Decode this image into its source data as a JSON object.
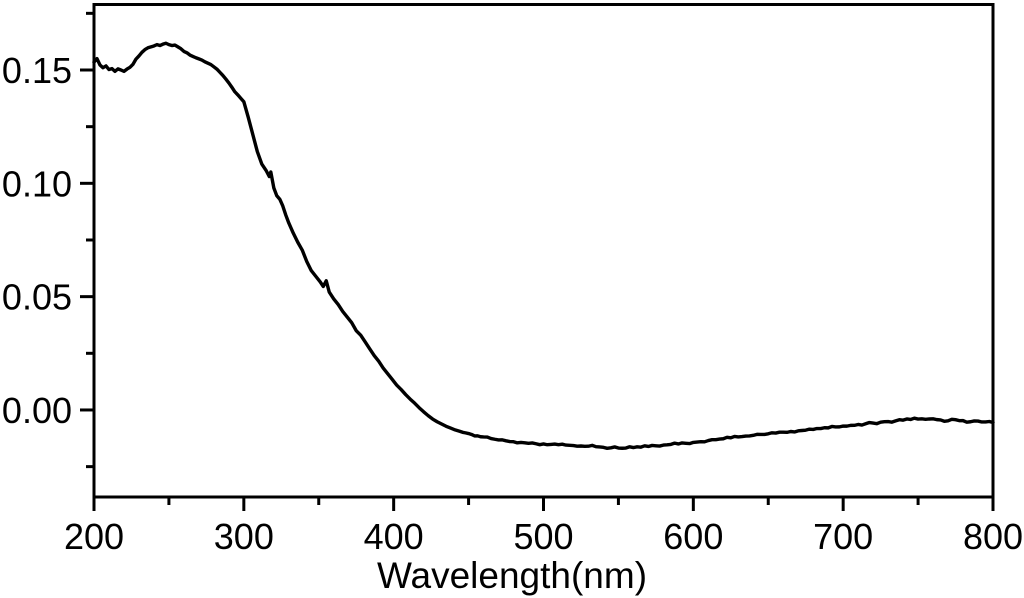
{
  "figure": {
    "background_color": "#ffffff",
    "axis_color": "#000000"
  },
  "chart_data": {
    "type": "line",
    "title": "",
    "xlabel": "Wavelength(nm)",
    "ylabel": "",
    "xlim": [
      200,
      800
    ],
    "ylim": [
      -0.0384,
      0.1789
    ],
    "x_major_ticks": [
      200,
      300,
      400,
      500,
      600,
      700,
      800
    ],
    "x_major_tick_labels": [
      "200",
      "300",
      "400",
      "500",
      "600",
      "700",
      "800"
    ],
    "x_minor_ticks": [
      250,
      350,
      450,
      550,
      650,
      750
    ],
    "y_major_ticks": [
      0.0,
      0.05,
      0.1,
      0.15
    ],
    "y_major_tick_labels": [
      "0.00",
      "0.05",
      "0.10",
      "0.15"
    ],
    "y_minor_ticks": [
      -0.025,
      0.025,
      0.075,
      0.125,
      0.175
    ],
    "grid": false,
    "legend_position": "none",
    "line_color": "#000000",
    "series": [
      {
        "name": "spectrum",
        "points": [
          [
            200,
            0.1535
          ],
          [
            202,
            0.155
          ],
          [
            204,
            0.1522
          ],
          [
            206,
            0.151
          ],
          [
            208,
            0.1518
          ],
          [
            210,
            0.1502
          ],
          [
            212,
            0.1506
          ],
          [
            214,
            0.1494
          ],
          [
            216,
            0.1505
          ],
          [
            218,
            0.15
          ],
          [
            220,
            0.1494
          ],
          [
            222,
            0.1504
          ],
          [
            224,
            0.1512
          ],
          [
            226,
            0.1525
          ],
          [
            228,
            0.1548
          ],
          [
            230,
            0.1562
          ],
          [
            232,
            0.1578
          ],
          [
            234,
            0.159
          ],
          [
            236,
            0.1598
          ],
          [
            238,
            0.1602
          ],
          [
            240,
            0.1606
          ],
          [
            242,
            0.1612
          ],
          [
            244,
            0.1608
          ],
          [
            246,
            0.1614
          ],
          [
            248,
            0.1618
          ],
          [
            250,
            0.1612
          ],
          [
            252,
            0.1608
          ],
          [
            254,
            0.161
          ],
          [
            256,
            0.1602
          ],
          [
            258,
            0.1594
          ],
          [
            260,
            0.1582
          ],
          [
            262,
            0.1576
          ],
          [
            264,
            0.1566
          ],
          [
            266,
            0.156
          ],
          [
            268,
            0.1554
          ],
          [
            270,
            0.1549
          ],
          [
            272,
            0.1544
          ],
          [
            274,
            0.1536
          ],
          [
            276,
            0.153
          ],
          [
            278,
            0.1524
          ],
          [
            280,
            0.1514
          ],
          [
            282,
            0.1504
          ],
          [
            284,
            0.149
          ],
          [
            286,
            0.1476
          ],
          [
            288,
            0.146
          ],
          [
            290,
            0.1443
          ],
          [
            292,
            0.1424
          ],
          [
            294,
            0.1404
          ],
          [
            296,
            0.139
          ],
          [
            298,
            0.1375
          ],
          [
            300,
            0.136
          ],
          [
            303,
            0.129
          ],
          [
            306,
            0.1215
          ],
          [
            309,
            0.114
          ],
          [
            312,
            0.1085
          ],
          [
            315,
            0.1055
          ],
          [
            317,
            0.103
          ],
          [
            318,
            0.105
          ],
          [
            320,
            0.098
          ],
          [
            322,
            0.0945
          ],
          [
            324,
            0.093
          ],
          [
            326,
            0.09
          ],
          [
            328,
            0.086
          ],
          [
            330,
            0.0825
          ],
          [
            333,
            0.078
          ],
          [
            336,
            0.074
          ],
          [
            339,
            0.0705
          ],
          [
            342,
            0.0655
          ],
          [
            345,
            0.0615
          ],
          [
            348,
            0.059
          ],
          [
            351,
            0.0565
          ],
          [
            353,
            0.0545
          ],
          [
            355,
            0.057
          ],
          [
            357,
            0.052
          ],
          [
            360,
            0.049
          ],
          [
            363,
            0.0465
          ],
          [
            366,
            0.0435
          ],
          [
            369,
            0.041
          ],
          [
            372,
            0.0385
          ],
          [
            375,
            0.035
          ],
          [
            378,
            0.033
          ],
          [
            381,
            0.03
          ],
          [
            384,
            0.027
          ],
          [
            387,
            0.024
          ],
          [
            390,
            0.0215
          ],
          [
            393,
            0.0185
          ],
          [
            396,
            0.016
          ],
          [
            399,
            0.0135
          ],
          [
            402,
            0.011
          ],
          [
            405,
            0.009
          ],
          [
            408,
            0.0068
          ],
          [
            411,
            0.0048
          ],
          [
            414,
            0.003
          ],
          [
            417,
            0.001
          ],
          [
            420,
            -0.0008
          ],
          [
            423,
            -0.0025
          ],
          [
            426,
            -0.004
          ],
          [
            429,
            -0.0052
          ],
          [
            432,
            -0.0062
          ],
          [
            435,
            -0.0072
          ],
          [
            438,
            -0.008
          ],
          [
            441,
            -0.0088
          ],
          [
            444,
            -0.0094
          ],
          [
            448,
            -0.0101
          ],
          [
            452,
            -0.0108
          ],
          [
            456,
            -0.0114
          ],
          [
            460,
            -0.0119
          ],
          [
            465,
            -0.0126
          ],
          [
            470,
            -0.0132
          ],
          [
            475,
            -0.0136
          ],
          [
            480,
            -0.014
          ],
          [
            485,
            -0.0143
          ],
          [
            490,
            -0.0147
          ],
          [
            495,
            -0.0149
          ],
          [
            500,
            -0.015
          ],
          [
            505,
            -0.0152
          ],
          [
            510,
            -0.0153
          ],
          [
            515,
            -0.0155
          ],
          [
            520,
            -0.0157
          ],
          [
            525,
            -0.0159
          ],
          [
            530,
            -0.016
          ],
          [
            535,
            -0.0162
          ],
          [
            540,
            -0.0165
          ],
          [
            545,
            -0.0167
          ],
          [
            550,
            -0.0168
          ],
          [
            555,
            -0.0168
          ],
          [
            560,
            -0.0166
          ],
          [
            565,
            -0.0164
          ],
          [
            570,
            -0.0161
          ],
          [
            575,
            -0.0158
          ],
          [
            580,
            -0.0155
          ],
          [
            585,
            -0.0152
          ],
          [
            590,
            -0.015
          ],
          [
            595,
            -0.0147
          ],
          [
            600,
            -0.0143
          ],
          [
            605,
            -0.014
          ],
          [
            610,
            -0.0135
          ],
          [
            615,
            -0.0131
          ],
          [
            620,
            -0.0127
          ],
          [
            625,
            -0.0123
          ],
          [
            630,
            -0.0119
          ],
          [
            635,
            -0.0115
          ],
          [
            640,
            -0.0112
          ],
          [
            645,
            -0.0108
          ],
          [
            650,
            -0.0105
          ],
          [
            655,
            -0.0102
          ],
          [
            660,
            -0.0098
          ],
          [
            665,
            -0.0095
          ],
          [
            670,
            -0.0092
          ],
          [
            675,
            -0.0089
          ],
          [
            680,
            -0.0086
          ],
          [
            685,
            -0.0082
          ],
          [
            690,
            -0.0079
          ],
          [
            695,
            -0.0075
          ],
          [
            700,
            -0.0071
          ],
          [
            705,
            -0.0068
          ],
          [
            710,
            -0.0064
          ],
          [
            715,
            -0.0061
          ],
          [
            720,
            -0.0058
          ],
          [
            725,
            -0.0054
          ],
          [
            730,
            -0.0051
          ],
          [
            735,
            -0.0048
          ],
          [
            740,
            -0.0045
          ],
          [
            745,
            -0.0042
          ],
          [
            750,
            -0.004
          ],
          [
            755,
            -0.0041
          ],
          [
            760,
            -0.0039
          ],
          [
            765,
            -0.0044
          ],
          [
            770,
            -0.0048
          ],
          [
            775,
            -0.0043
          ],
          [
            780,
            -0.0047
          ],
          [
            785,
            -0.0052
          ],
          [
            790,
            -0.0049
          ],
          [
            795,
            -0.0053
          ],
          [
            800,
            -0.0055
          ]
        ]
      }
    ]
  }
}
